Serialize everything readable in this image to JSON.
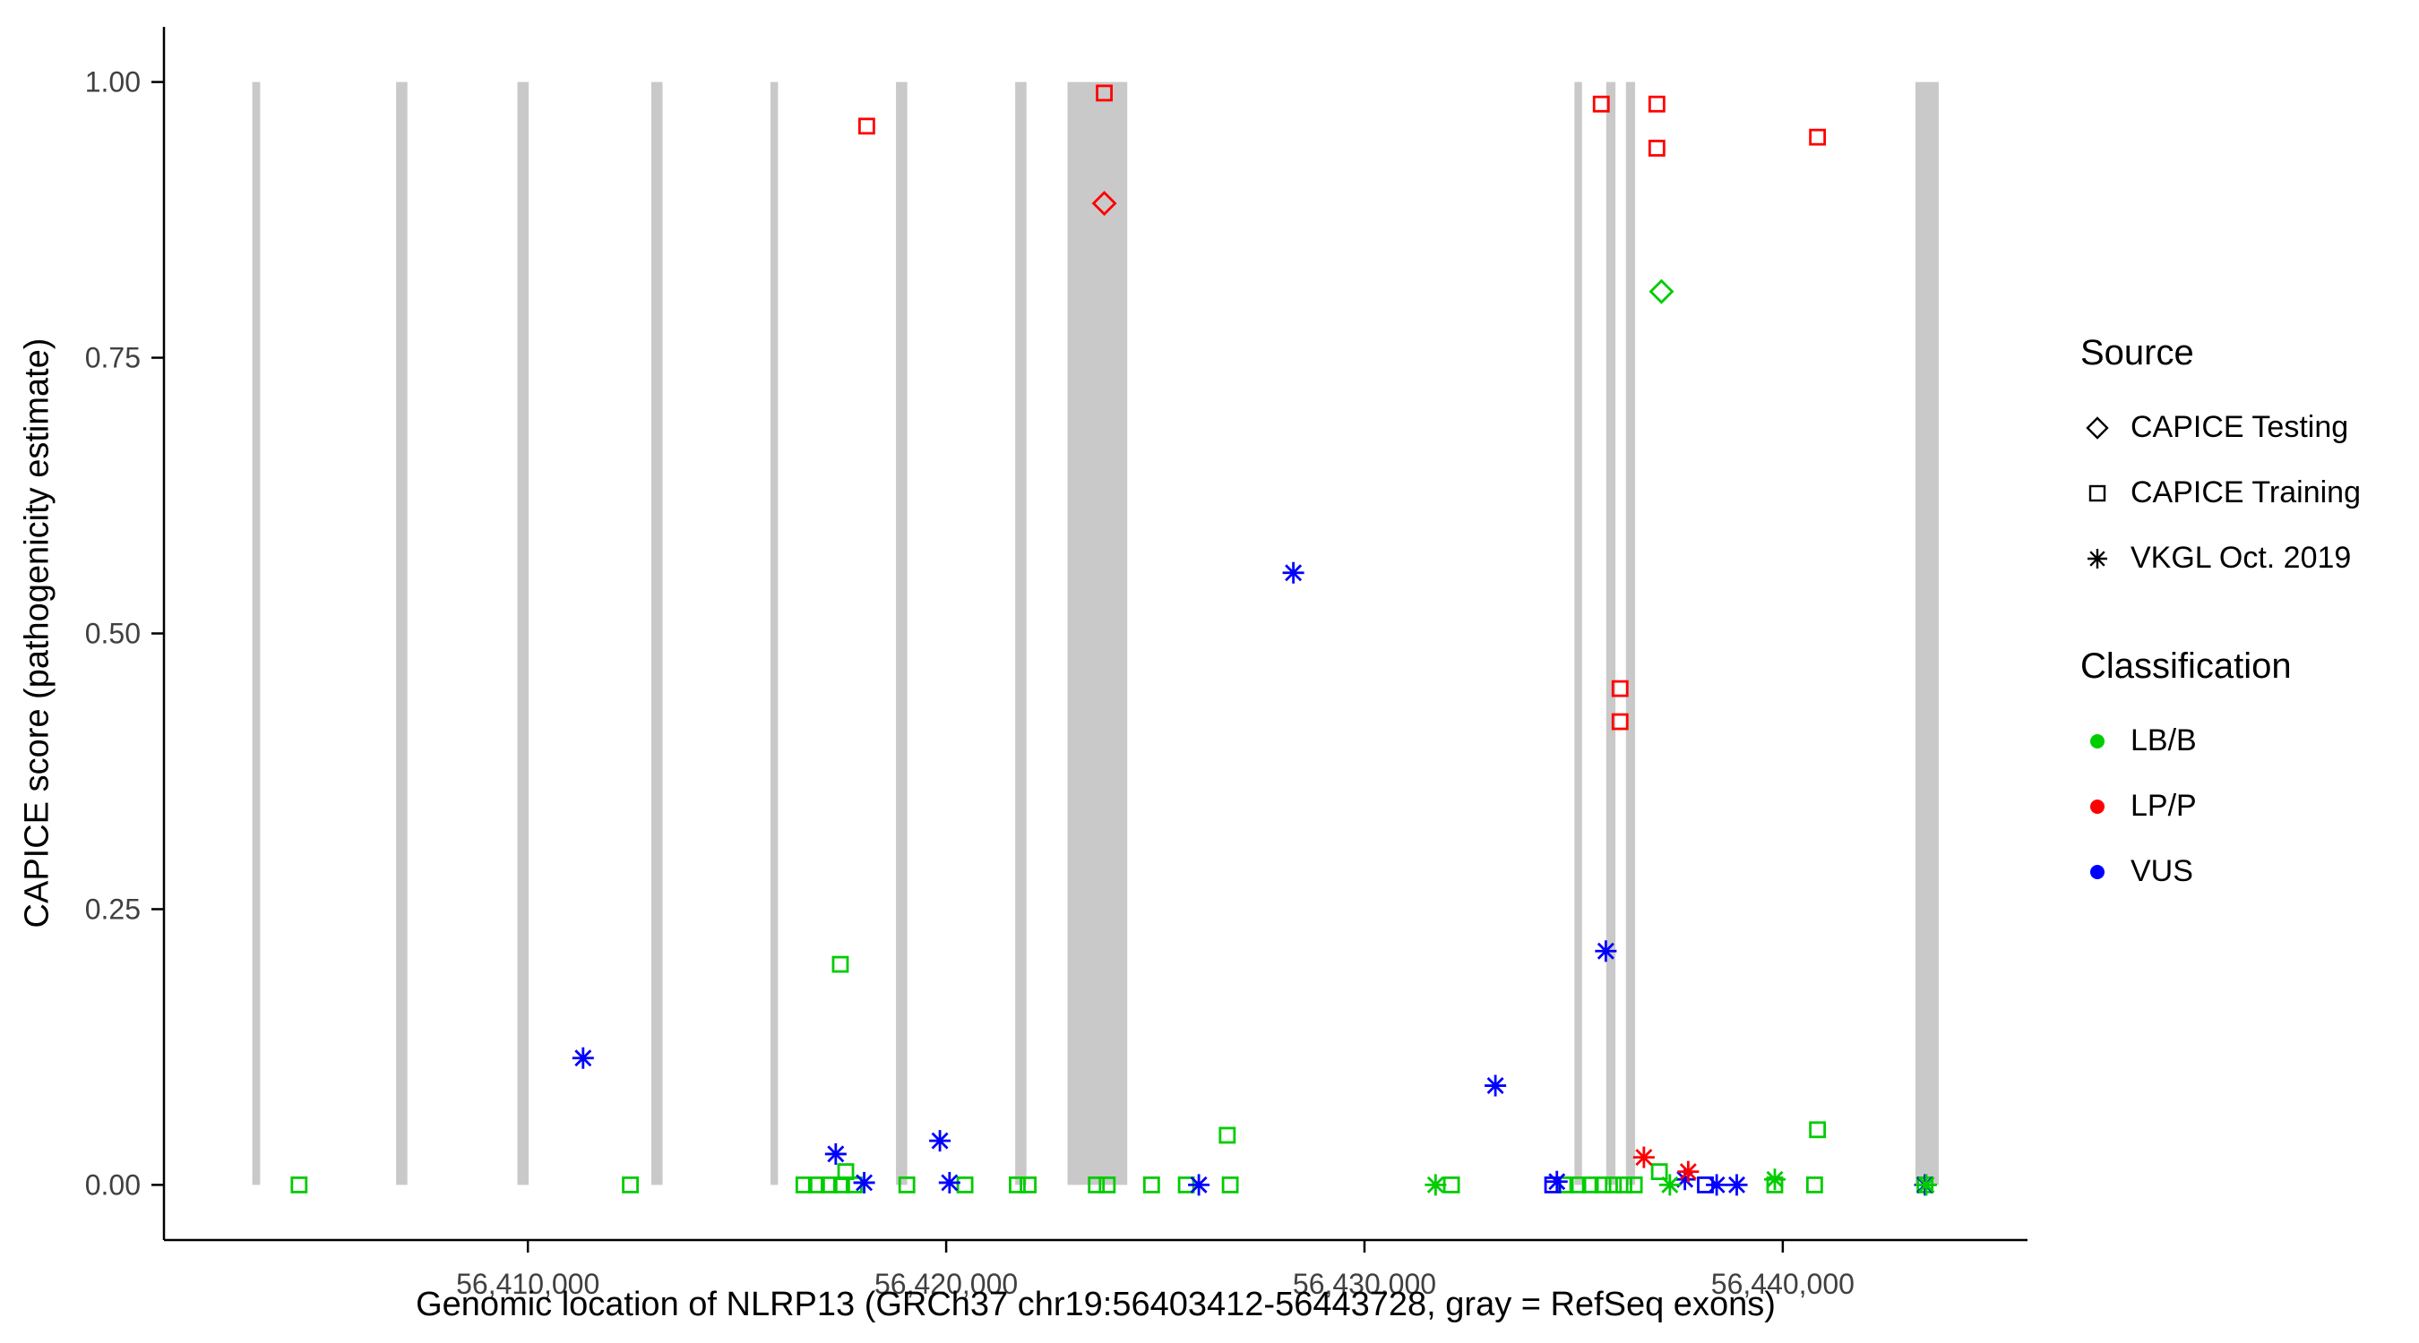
{
  "colors": {
    "exon": "#C9C9C9",
    "axis": "#000000",
    "axis_text": "#404040",
    "lbb": "#00CC00",
    "lpp": "#FF0000",
    "vus": "#0000FF"
  },
  "axes": {
    "x": {
      "ticks": [
        56410000,
        56420000,
        56430000,
        56440000
      ],
      "tick_labels": [
        "56,410,000",
        "56,420,000",
        "56,430,000",
        "56,440,000"
      ]
    },
    "y": {
      "ticks": [
        0,
        0.25,
        0.5,
        0.75,
        1
      ],
      "tick_labels": [
        "0.00",
        "0.25",
        "0.50",
        "0.75",
        "1.00"
      ]
    }
  },
  "legend": {
    "source": {
      "title": "Source",
      "items": [
        {
          "label": "CAPICE Testing",
          "shape": "diamond"
        },
        {
          "label": "CAPICE Training",
          "shape": "square"
        },
        {
          "label": "VKGL Oct. 2019",
          "shape": "asterisk"
        }
      ]
    },
    "classification": {
      "title": "Classification",
      "items": [
        {
          "label": "LB/B",
          "color": "#00CC00"
        },
        {
          "label": "LP/P",
          "color": "#FF0000"
        },
        {
          "label": "VUS",
          "color": "#0000FF"
        }
      ]
    }
  },
  "chart_data": {
    "type": "scatter",
    "title": "",
    "xlabel": "Genomic location of NLRP13 (GRCh37 chr19:56403412-56443728, gray = RefSeq exons)",
    "ylabel": "CAPICE score (pathogenicity estimate)",
    "xlim": [
      56401300,
      56445850
    ],
    "ylim": [
      -0.05,
      1.05
    ],
    "grid": false,
    "legend_position": "right",
    "exons": [
      [
        56403412,
        56403600
      ],
      [
        56406850,
        56407120
      ],
      [
        56409750,
        56410020
      ],
      [
        56412950,
        56413220
      ],
      [
        56415800,
        56415980
      ],
      [
        56418800,
        56419070
      ],
      [
        56421650,
        56421920
      ],
      [
        56422900,
        56424330
      ],
      [
        56435020,
        56435200
      ],
      [
        56435780,
        56436000
      ],
      [
        56436250,
        56436470
      ],
      [
        56443170,
        56443728
      ]
    ],
    "series": [
      {
        "name": "CAPICE Training / LP/P",
        "source": "CAPICE Training",
        "classification": "LP/P",
        "shape": "square",
        "color": "#FF0000",
        "points": [
          [
            56418100,
            0.96
          ],
          [
            56423780,
            0.99
          ],
          [
            56435660,
            0.98
          ],
          [
            56436990,
            0.98
          ],
          [
            56436990,
            0.94
          ],
          [
            56440830,
            0.95
          ],
          [
            56436110,
            0.45
          ],
          [
            56436110,
            0.42
          ]
        ]
      },
      {
        "name": "CAPICE Testing / LP/P",
        "source": "CAPICE Testing",
        "classification": "LP/P",
        "shape": "diamond",
        "color": "#FF0000",
        "points": [
          [
            56423780,
            0.89
          ]
        ]
      },
      {
        "name": "CAPICE Testing / LB/B",
        "source": "CAPICE Testing",
        "classification": "LB/B",
        "shape": "diamond",
        "color": "#00CC00",
        "points": [
          [
            56437100,
            0.81
          ]
        ]
      },
      {
        "name": "CAPICE Training / LB/B",
        "source": "CAPICE Training",
        "classification": "LB/B",
        "shape": "square",
        "color": "#00CC00",
        "points": [
          [
            56417470,
            0.2
          ],
          [
            56426720,
            0.045
          ],
          [
            56440830,
            0.05
          ],
          [
            56417600,
            0.012
          ],
          [
            56437050,
            0.012
          ],
          [
            56404530,
            0
          ],
          [
            56412450,
            0
          ],
          [
            56416600,
            0
          ],
          [
            56416900,
            0
          ],
          [
            56417200,
            0
          ],
          [
            56417500,
            0
          ],
          [
            56417800,
            0
          ],
          [
            56419060,
            0
          ],
          [
            56420450,
            0
          ],
          [
            56421700,
            0
          ],
          [
            56421960,
            0
          ],
          [
            56423590,
            0
          ],
          [
            56423850,
            0
          ],
          [
            56424910,
            0
          ],
          [
            56425740,
            0
          ],
          [
            56426790,
            0
          ],
          [
            56432080,
            0
          ],
          [
            56434800,
            0
          ],
          [
            56435100,
            0
          ],
          [
            56435400,
            0
          ],
          [
            56435700,
            0
          ],
          [
            56435950,
            0
          ],
          [
            56436200,
            0
          ],
          [
            56436450,
            0
          ],
          [
            56439810,
            0
          ],
          [
            56440760,
            0
          ],
          [
            56443400,
            0
          ]
        ]
      },
      {
        "name": "CAPICE Training / VUS",
        "source": "CAPICE Training",
        "classification": "VUS",
        "shape": "square",
        "color": "#0000FF",
        "points": [
          [
            56434500,
            0
          ],
          [
            56438150,
            0
          ]
        ]
      },
      {
        "name": "VKGL Oct. 2019 / VUS",
        "source": "VKGL Oct. 2019",
        "classification": "VUS",
        "shape": "asterisk",
        "color": "#0000FF",
        "points": [
          [
            56428300,
            0.555
          ],
          [
            56411320,
            0.115
          ],
          [
            56435770,
            0.212
          ],
          [
            56433130,
            0.09
          ],
          [
            56417360,
            0.028
          ],
          [
            56419850,
            0.04
          ],
          [
            56418040,
            0.002
          ],
          [
            56420080,
            0.002
          ],
          [
            56426040,
            0
          ],
          [
            56434600,
            0.003
          ],
          [
            56437660,
            0.005
          ],
          [
            56438420,
            0
          ],
          [
            56438900,
            0
          ],
          [
            56443400,
            0
          ]
        ]
      },
      {
        "name": "VKGL Oct. 2019 / LB/B",
        "source": "VKGL Oct. 2019",
        "classification": "LB/B",
        "shape": "asterisk",
        "color": "#00CC00",
        "points": [
          [
            56431700,
            0
          ],
          [
            56439810,
            0.005
          ],
          [
            56443430,
            0
          ],
          [
            56437300,
            0
          ]
        ]
      },
      {
        "name": "VKGL Oct. 2019 / LP/P",
        "source": "VKGL Oct. 2019",
        "classification": "LP/P",
        "shape": "asterisk",
        "color": "#FF0000",
        "points": [
          [
            56436680,
            0.025
          ],
          [
            56437740,
            0.012
          ]
        ]
      }
    ]
  }
}
